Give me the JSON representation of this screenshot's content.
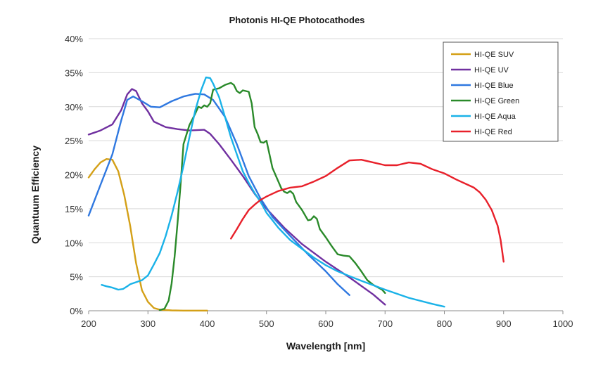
{
  "chart_data": {
    "type": "line",
    "title": "Photonis HI-QE Photocathodes",
    "xlabel": "Wavelength [nm]",
    "ylabel": "Quantuum Efficiency",
    "xlim": [
      200,
      1000
    ],
    "ylim": [
      0,
      40
    ],
    "x_ticks": [
      "200",
      "300",
      "400",
      "500",
      "600",
      "700",
      "800",
      "900",
      "1000"
    ],
    "y_ticks": [
      "0%",
      "5%",
      "10%",
      "15%",
      "20%",
      "25%",
      "30%",
      "35%",
      "40%"
    ],
    "grid": "horizontal",
    "legend_position": "top-right",
    "series": [
      {
        "name": "HI-QE SUV",
        "color": "#d4a017",
        "points": [
          [
            200,
            19.6
          ],
          [
            210,
            20.8
          ],
          [
            220,
            21.8
          ],
          [
            230,
            22.3
          ],
          [
            240,
            22.2
          ],
          [
            250,
            20.5
          ],
          [
            260,
            17
          ],
          [
            270,
            12.5
          ],
          [
            280,
            7
          ],
          [
            290,
            3
          ],
          [
            300,
            1.3
          ],
          [
            310,
            0.4
          ],
          [
            320,
            0.15
          ],
          [
            340,
            0.05
          ],
          [
            360,
            0.02
          ],
          [
            400,
            0.02
          ]
        ]
      },
      {
        "name": "HI-QE UV",
        "color": "#7030a0",
        "points": [
          [
            200,
            25.9
          ],
          [
            220,
            26.5
          ],
          [
            240,
            27.4
          ],
          [
            255,
            29.5
          ],
          [
            265,
            31.8
          ],
          [
            273,
            32.6
          ],
          [
            280,
            32.3
          ],
          [
            290,
            30.5
          ],
          [
            300,
            29.3
          ],
          [
            310,
            27.8
          ],
          [
            330,
            27
          ],
          [
            350,
            26.7
          ],
          [
            370,
            26.5
          ],
          [
            395,
            26.6
          ],
          [
            405,
            26
          ],
          [
            420,
            24.5
          ],
          [
            440,
            22.2
          ],
          [
            460,
            19.8
          ],
          [
            480,
            17.2
          ],
          [
            500,
            15
          ],
          [
            530,
            12.2
          ],
          [
            560,
            9.8
          ],
          [
            600,
            7.2
          ],
          [
            640,
            4.9
          ],
          [
            680,
            2.4
          ],
          [
            700,
            0.9
          ]
        ]
      },
      {
        "name": "HI-QE Blue",
        "color": "#2f78e0",
        "points": [
          [
            200,
            14
          ],
          [
            220,
            18.5
          ],
          [
            240,
            23
          ],
          [
            255,
            28
          ],
          [
            265,
            31
          ],
          [
            275,
            31.5
          ],
          [
            290,
            30.8
          ],
          [
            305,
            30
          ],
          [
            320,
            29.9
          ],
          [
            340,
            30.8
          ],
          [
            360,
            31.5
          ],
          [
            380,
            31.9
          ],
          [
            395,
            31.8
          ],
          [
            410,
            31
          ],
          [
            430,
            28.5
          ],
          [
            450,
            24.5
          ],
          [
            470,
            19.8
          ],
          [
            490,
            16.5
          ],
          [
            510,
            13.8
          ],
          [
            540,
            11
          ],
          [
            570,
            8.3
          ],
          [
            600,
            5.8
          ],
          [
            620,
            3.9
          ],
          [
            640,
            2.3
          ]
        ]
      },
      {
        "name": "HI-QE Green",
        "color": "#2a8a2a",
        "points": [
          [
            320,
            0.1
          ],
          [
            328,
            0.3
          ],
          [
            335,
            1.5
          ],
          [
            340,
            4
          ],
          [
            345,
            8
          ],
          [
            350,
            13
          ],
          [
            355,
            18.5
          ],
          [
            360,
            24.5
          ],
          [
            370,
            27.3
          ],
          [
            380,
            29
          ],
          [
            385,
            30
          ],
          [
            390,
            29.8
          ],
          [
            395,
            30.2
          ],
          [
            400,
            30
          ],
          [
            405,
            30.5
          ],
          [
            410,
            32.5
          ],
          [
            420,
            32.7
          ],
          [
            430,
            33.2
          ],
          [
            440,
            33.5
          ],
          [
            445,
            33.2
          ],
          [
            450,
            32.3
          ],
          [
            455,
            32
          ],
          [
            460,
            32.4
          ],
          [
            470,
            32.2
          ],
          [
            475,
            30.5
          ],
          [
            480,
            27
          ],
          [
            485,
            26
          ],
          [
            490,
            24.8
          ],
          [
            495,
            24.7
          ],
          [
            500,
            25
          ],
          [
            505,
            23
          ],
          [
            510,
            21
          ],
          [
            520,
            19
          ],
          [
            525,
            18
          ],
          [
            530,
            17.5
          ],
          [
            535,
            17.3
          ],
          [
            540,
            17.6
          ],
          [
            545,
            17.2
          ],
          [
            550,
            16
          ],
          [
            560,
            14.8
          ],
          [
            570,
            13.3
          ],
          [
            575,
            13.4
          ],
          [
            580,
            13.9
          ],
          [
            585,
            13.5
          ],
          [
            590,
            12
          ],
          [
            600,
            10.8
          ],
          [
            610,
            9.5
          ],
          [
            620,
            8.3
          ],
          [
            630,
            8.1
          ],
          [
            640,
            8
          ],
          [
            650,
            7
          ],
          [
            660,
            5.8
          ],
          [
            670,
            4.5
          ],
          [
            680,
            3.8
          ],
          [
            695,
            3.1
          ],
          [
            700,
            2.6
          ]
        ]
      },
      {
        "name": "HI-QE Aqua",
        "color": "#1ab2e8",
        "points": [
          [
            222,
            3.8
          ],
          [
            230,
            3.6
          ],
          [
            240,
            3.4
          ],
          [
            250,
            3.1
          ],
          [
            258,
            3.2
          ],
          [
            265,
            3.6
          ],
          [
            270,
            3.9
          ],
          [
            280,
            4.2
          ],
          [
            290,
            4.5
          ],
          [
            300,
            5.2
          ],
          [
            310,
            6.8
          ],
          [
            320,
            8.5
          ],
          [
            330,
            11
          ],
          [
            340,
            14
          ],
          [
            350,
            17.5
          ],
          [
            360,
            21.3
          ],
          [
            370,
            25.5
          ],
          [
            380,
            29.5
          ],
          [
            390,
            32.5
          ],
          [
            398,
            34.3
          ],
          [
            405,
            34.2
          ],
          [
            410,
            33.4
          ],
          [
            420,
            31.4
          ],
          [
            430,
            28.5
          ],
          [
            440,
            25.5
          ],
          [
            450,
            23
          ],
          [
            460,
            20.5
          ],
          [
            470,
            18.8
          ],
          [
            480,
            17.3
          ],
          [
            490,
            16
          ],
          [
            500,
            14.4
          ],
          [
            520,
            12.2
          ],
          [
            540,
            10.4
          ],
          [
            560,
            9.1
          ],
          [
            580,
            7.8
          ],
          [
            600,
            6.7
          ],
          [
            620,
            5.8
          ],
          [
            640,
            5.1
          ],
          [
            660,
            4.4
          ],
          [
            700,
            3.1
          ],
          [
            740,
            1.9
          ],
          [
            780,
            1
          ],
          [
            800,
            0.6
          ]
        ]
      },
      {
        "name": "HI-QE Red",
        "color": "#e8202a",
        "points": [
          [
            440,
            10.6
          ],
          [
            450,
            12
          ],
          [
            460,
            13.5
          ],
          [
            470,
            14.8
          ],
          [
            480,
            15.6
          ],
          [
            490,
            16.3
          ],
          [
            500,
            16.8
          ],
          [
            520,
            17.6
          ],
          [
            540,
            18.1
          ],
          [
            560,
            18.3
          ],
          [
            580,
            19
          ],
          [
            600,
            19.8
          ],
          [
            620,
            21
          ],
          [
            640,
            22.1
          ],
          [
            660,
            22.2
          ],
          [
            680,
            21.8
          ],
          [
            700,
            21.4
          ],
          [
            720,
            21.4
          ],
          [
            740,
            21.8
          ],
          [
            760,
            21.6
          ],
          [
            780,
            20.8
          ],
          [
            800,
            20.2
          ],
          [
            820,
            19.3
          ],
          [
            840,
            18.5
          ],
          [
            850,
            18.1
          ],
          [
            860,
            17.4
          ],
          [
            870,
            16.3
          ],
          [
            880,
            14.8
          ],
          [
            890,
            12.5
          ],
          [
            895,
            10.4
          ],
          [
            900,
            7.2
          ]
        ]
      }
    ]
  }
}
